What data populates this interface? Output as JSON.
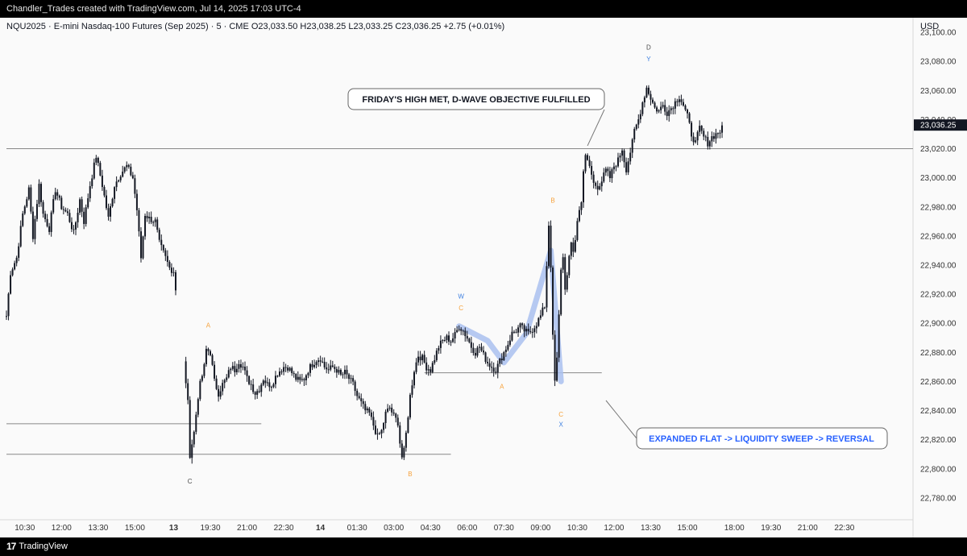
{
  "header": {
    "attribution": "Chandler_Trades created with TradingView.com, Jul 14, 2025 17:03 UTC-4"
  },
  "footer": {
    "logo_icon": "tradingview-logo-icon",
    "logo_text": "TradingView"
  },
  "colors": {
    "background": "#fafafa",
    "candle": "#131722",
    "price_line": "#888888",
    "wave_label_orange": "#f6a13a",
    "wave_label_blue": "#3d7fe0",
    "wave_path": "#a9c0ef",
    "callout_blue_text": "#2962ff",
    "last_price_badge": "#131722"
  },
  "chart_data": {
    "type": "candlestick",
    "instrument_line": "NQU2025 · E-mini Nasdaq-100 Futures (Sep 2025) · 5 · CME   O23,033.50  H23,038.25  L23,033.25  C23,036.25  +2.75 (+0.01%)",
    "currency": "USD",
    "last_price_label": "23,036.25",
    "last_price": 23036.25,
    "ylim": [
      22765,
      23110
    ],
    "y_ticks": [
      {
        "label": "23,100.00",
        "value": 23100
      },
      {
        "label": "23,080.00",
        "value": 23080
      },
      {
        "label": "23,060.00",
        "value": 23060
      },
      {
        "label": "23,040.00",
        "value": 23040
      },
      {
        "label": "23,020.00",
        "value": 23020
      },
      {
        "label": "23,000.00",
        "value": 23000
      },
      {
        "label": "22,980.00",
        "value": 22980
      },
      {
        "label": "22,960.00",
        "value": 22960
      },
      {
        "label": "22,940.00",
        "value": 22940
      },
      {
        "label": "22,920.00",
        "value": 22920
      },
      {
        "label": "22,900.00",
        "value": 22900
      },
      {
        "label": "22,880.00",
        "value": 22880
      },
      {
        "label": "22,860.00",
        "value": 22860
      },
      {
        "label": "22,840.00",
        "value": 22840
      },
      {
        "label": "22,820.00",
        "value": 22820
      },
      {
        "label": "22,800.00",
        "value": 22800
      },
      {
        "label": "22,780.00",
        "value": 22780
      }
    ],
    "x_session": [
      "10:30",
      "12:00",
      "13:30",
      "15:00",
      "13",
      "19:30",
      "21:00",
      "22:30",
      "14",
      "01:30",
      "03:00",
      "04:30",
      "06:00",
      "07:30",
      "09:00",
      "10:30",
      "12:00",
      "13:30",
      "15:00",
      "18:00",
      "19:30",
      "21:00",
      "22:30"
    ],
    "x_ticks": [
      {
        "label": "10:30",
        "bar": 9
      },
      {
        "label": "12:00",
        "bar": 27
      },
      {
        "label": "13:30",
        "bar": 45
      },
      {
        "label": "15:00",
        "bar": 63
      },
      {
        "label": "13",
        "bar": 82,
        "bold": true
      },
      {
        "label": "19:30",
        "bar": 100
      },
      {
        "label": "21:00",
        "bar": 118
      },
      {
        "label": "22:30",
        "bar": 136
      },
      {
        "label": "14",
        "bar": 154,
        "bold": true
      },
      {
        "label": "01:30",
        "bar": 172
      },
      {
        "label": "03:00",
        "bar": 190
      },
      {
        "label": "04:30",
        "bar": 208
      },
      {
        "label": "06:00",
        "bar": 226
      },
      {
        "label": "07:30",
        "bar": 244
      },
      {
        "label": "09:00",
        "bar": 262
      },
      {
        "label": "10:30",
        "bar": 280
      },
      {
        "label": "12:00",
        "bar": 298
      },
      {
        "label": "13:30",
        "bar": 316
      },
      {
        "label": "15:00",
        "bar": 334
      },
      {
        "label": "18:00",
        "bar": 357
      },
      {
        "label": "19:30",
        "bar": 375
      },
      {
        "label": "21:00",
        "bar": 393
      },
      {
        "label": "22:30",
        "bar": 411
      }
    ],
    "price_path": [
      [
        0,
        22905
      ],
      [
        2,
        22935
      ],
      [
        5,
        22945
      ],
      [
        8,
        22975
      ],
      [
        11,
        22992
      ],
      [
        13,
        22960
      ],
      [
        16,
        22995
      ],
      [
        18,
        22975
      ],
      [
        21,
        22965
      ],
      [
        24,
        22992
      ],
      [
        27,
        22980
      ],
      [
        30,
        22975
      ],
      [
        33,
        22962
      ],
      [
        36,
        22985
      ],
      [
        38,
        22970
      ],
      [
        41,
        22995
      ],
      [
        44,
        23015
      ],
      [
        47,
        22995
      ],
      [
        50,
        22972
      ],
      [
        53,
        22995
      ],
      [
        56,
        23003
      ],
      [
        59,
        23008
      ],
      [
        62,
        23000
      ],
      [
        64,
        22978
      ],
      [
        66,
        22945
      ],
      [
        68,
        22975
      ],
      [
        70,
        22972
      ],
      [
        73,
        22970
      ],
      [
        75,
        22955
      ],
      [
        78,
        22945
      ],
      [
        80,
        22938
      ],
      [
        82,
        22936
      ],
      [
        88,
        22860
      ],
      [
        89,
        22845
      ],
      [
        90,
        22810
      ],
      [
        92,
        22825
      ],
      [
        94,
        22850
      ],
      [
        95,
        22858
      ],
      [
        97,
        22870
      ],
      [
        98,
        22882
      ],
      [
        100,
        22880
      ],
      [
        102,
        22860
      ],
      [
        104,
        22852
      ],
      [
        106,
        22858
      ],
      [
        108,
        22862
      ],
      [
        110,
        22870
      ],
      [
        112,
        22868
      ],
      [
        114,
        22874
      ],
      [
        116,
        22870
      ],
      [
        118,
        22862
      ],
      [
        120,
        22858
      ],
      [
        122,
        22852
      ],
      [
        124,
        22855
      ],
      [
        126,
        22862
      ],
      [
        128,
        22858
      ],
      [
        130,
        22858
      ],
      [
        133,
        22866
      ],
      [
        136,
        22870
      ],
      [
        138,
        22870
      ],
      [
        140,
        22866
      ],
      [
        142,
        22862
      ],
      [
        144,
        22860
      ],
      [
        146,
        22862
      ],
      [
        148,
        22868
      ],
      [
        150,
        22872
      ],
      [
        152,
        22875
      ],
      [
        154,
        22876
      ],
      [
        156,
        22870
      ],
      [
        158,
        22868
      ],
      [
        160,
        22870
      ],
      [
        162,
        22868
      ],
      [
        164,
        22864
      ],
      [
        166,
        22866
      ],
      [
        168,
        22862
      ],
      [
        170,
        22858
      ],
      [
        172,
        22850
      ],
      [
        174,
        22845
      ],
      [
        176,
        22840
      ],
      [
        178,
        22838
      ],
      [
        180,
        22830
      ],
      [
        182,
        22822
      ],
      [
        184,
        22826
      ],
      [
        186,
        22838
      ],
      [
        188,
        22842
      ],
      [
        190,
        22836
      ],
      [
        192,
        22832
      ],
      [
        193,
        22818
      ],
      [
        194,
        22808
      ],
      [
        195,
        22812
      ],
      [
        196,
        22824
      ],
      [
        198,
        22850
      ],
      [
        200,
        22868
      ],
      [
        202,
        22878
      ],
      [
        204,
        22876
      ],
      [
        206,
        22870
      ],
      [
        208,
        22868
      ],
      [
        210,
        22876
      ],
      [
        212,
        22884
      ],
      [
        214,
        22888
      ],
      [
        216,
        22890
      ],
      [
        218,
        22888
      ],
      [
        220,
        22892
      ],
      [
        222,
        22898
      ],
      [
        224,
        22895
      ],
      [
        226,
        22890
      ],
      [
        228,
        22884
      ],
      [
        230,
        22880
      ],
      [
        232,
        22884
      ],
      [
        234,
        22878
      ],
      [
        236,
        22873
      ],
      [
        238,
        22870
      ],
      [
        240,
        22868
      ],
      [
        242,
        22874
      ],
      [
        244,
        22880
      ],
      [
        246,
        22886
      ],
      [
        248,
        22893
      ],
      [
        250,
        22895
      ],
      [
        252,
        22898
      ],
      [
        254,
        22895
      ],
      [
        256,
        22893
      ],
      [
        258,
        22896
      ],
      [
        260,
        22900
      ],
      [
        262,
        22905
      ],
      [
        264,
        22912
      ],
      [
        265,
        22940
      ],
      [
        266,
        22968
      ],
      [
        267,
        22940
      ],
      [
        268,
        22890
      ],
      [
        269,
        22860
      ],
      [
        270,
        22875
      ],
      [
        271,
        22905
      ],
      [
        272,
        22938
      ],
      [
        273,
        22945
      ],
      [
        274,
        22925
      ],
      [
        275,
        22932
      ],
      [
        276,
        22944
      ],
      [
        277,
        22955
      ],
      [
        278,
        22950
      ],
      [
        279,
        22958
      ],
      [
        280,
        22970
      ],
      [
        282,
        22985
      ],
      [
        283,
        23005
      ],
      [
        284,
        23014
      ],
      [
        286,
        23008
      ],
      [
        288,
        22996
      ],
      [
        290,
        22994
      ],
      [
        292,
        22998
      ],
      [
        294,
        23005
      ],
      [
        296,
        23000
      ],
      [
        298,
        23008
      ],
      [
        300,
        23012
      ],
      [
        302,
        23020
      ],
      [
        303,
        23012
      ],
      [
        304,
        23006
      ],
      [
        306,
        23018
      ],
      [
        307,
        23024
      ],
      [
        308,
        23032
      ],
      [
        310,
        23040
      ],
      [
        312,
        23052
      ],
      [
        314,
        23062
      ],
      [
        316,
        23055
      ],
      [
        318,
        23048
      ],
      [
        320,
        23046
      ],
      [
        322,
        23050
      ],
      [
        324,
        23045
      ],
      [
        326,
        23048
      ],
      [
        328,
        23052
      ],
      [
        330,
        23056
      ],
      [
        332,
        23050
      ],
      [
        334,
        23042
      ],
      [
        336,
        23030
      ],
      [
        338,
        23024
      ],
      [
        340,
        23034
      ],
      [
        342,
        23028
      ],
      [
        344,
        23024
      ],
      [
        346,
        23028
      ],
      [
        348,
        23030
      ],
      [
        350,
        23032
      ],
      [
        351,
        23036
      ]
    ],
    "horizontal_levels": [
      {
        "value": 23020,
        "from_bar": 0,
        "to_bar": 460
      },
      {
        "value": 22831,
        "from_bar": 0,
        "to_bar": 125
      },
      {
        "value": 22810,
        "from_bar": 0,
        "to_bar": 218
      },
      {
        "value": 22866,
        "from_bar": 205,
        "to_bar": 292
      }
    ],
    "wave_labels": [
      {
        "text": "A",
        "bar": 99,
        "value": 22897,
        "color": "orange"
      },
      {
        "text": "C",
        "bar": 90,
        "value": 22790,
        "color": "dark"
      },
      {
        "text": "B",
        "bar": 198,
        "value": 22795,
        "color": "orange"
      },
      {
        "text": "W",
        "bar": 223,
        "value": 22917,
        "color": "blue"
      },
      {
        "text": "C",
        "bar": 223,
        "value": 22909,
        "color": "orange"
      },
      {
        "text": "A",
        "bar": 243,
        "value": 22855,
        "color": "orange"
      },
      {
        "text": "B",
        "bar": 268,
        "value": 22983,
        "color": "orange"
      },
      {
        "text": "C",
        "bar": 272,
        "value": 22836,
        "color": "orange"
      },
      {
        "text": "X",
        "bar": 272,
        "value": 22829,
        "color": "blue"
      },
      {
        "text": "D",
        "bar": 315,
        "value": 23088,
        "color": "dark"
      },
      {
        "text": "Y",
        "bar": 315,
        "value": 23080,
        "color": "blue"
      }
    ],
    "wave_path": [
      [
        222,
        22898
      ],
      [
        236,
        22888
      ],
      [
        244,
        22873
      ],
      [
        255,
        22893
      ],
      [
        267,
        22950
      ],
      [
        272,
        22860
      ]
    ],
    "annotations": [
      {
        "text": "FRIDAY'S HIGH MET, D-WAVE OBJECTIVE FULFILLED",
        "color": "dark",
        "anchor_bar": 285,
        "anchor_value": 23022
      },
      {
        "text": "EXPANDED FLAT -> LIQUIDITY SWEEP -> REVERSAL",
        "color": "blue",
        "anchor_bar": 279,
        "anchor_value": 22856
      }
    ]
  }
}
